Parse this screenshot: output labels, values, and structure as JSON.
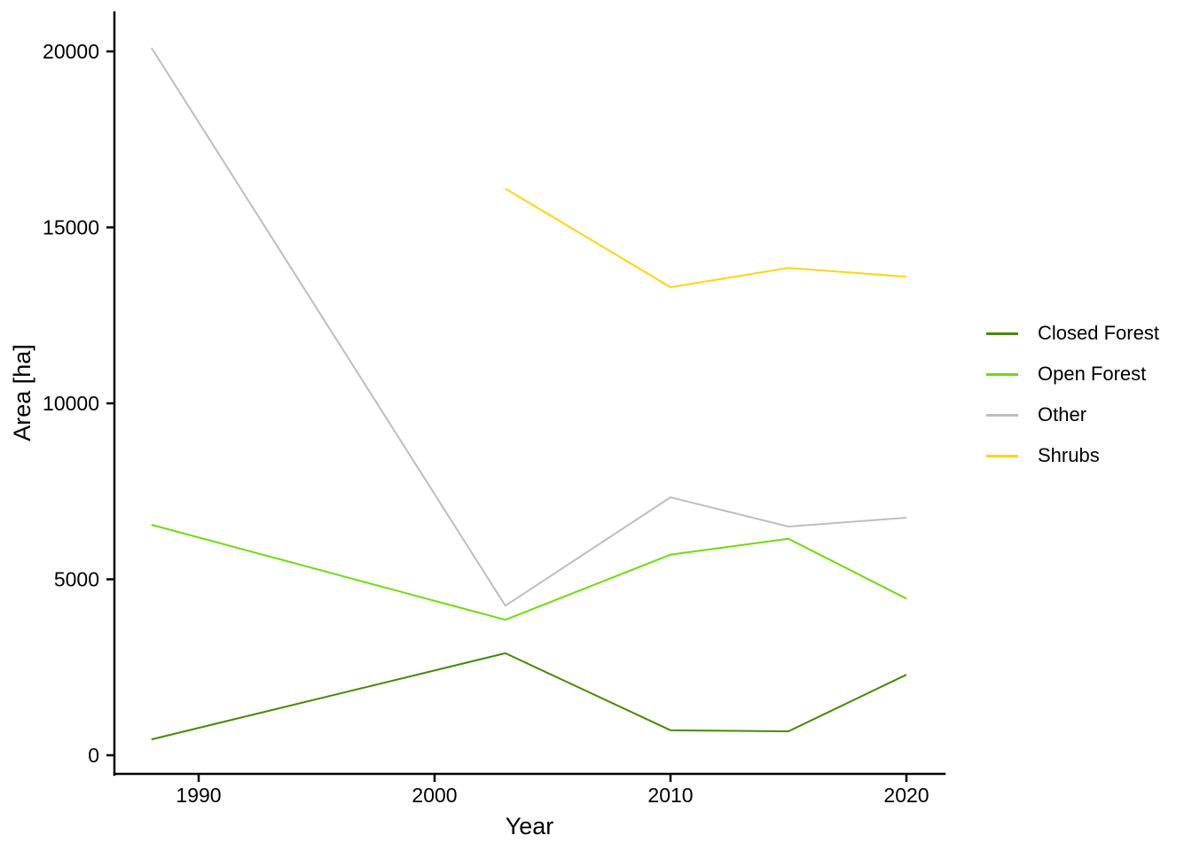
{
  "figure": {
    "background_color": "#FFFFFF",
    "text_color": "#000000"
  },
  "chart_data": {
    "type": "line",
    "title": "",
    "xlabel": "Year",
    "ylabel": "Area [ha]",
    "xticks": [
      1990,
      2000,
      2010,
      2020
    ],
    "xtick_labels": [
      "1990",
      "2000",
      "2010",
      "2020"
    ],
    "yticks": [
      0,
      5000,
      10000,
      15000,
      20000
    ],
    "ytick_labels": [
      "0",
      "5000",
      "10000",
      "15000",
      "20000"
    ],
    "xlim": [
      1986.4,
      2021.6
    ],
    "ylim": [
      -530,
      21110
    ],
    "grid": false,
    "legend_position": "right",
    "x_years": [
      1988,
      2003,
      2010,
      2015,
      2020
    ],
    "series": [
      {
        "name": "Closed Forest",
        "color": "#458B00",
        "points": [
          [
            1988,
            450
          ],
          [
            2003,
            2900
          ],
          [
            2010,
            710
          ],
          [
            2015,
            680
          ],
          [
            2020,
            2290
          ]
        ]
      },
      {
        "name": "Open Forest",
        "color": "#6EDD00",
        "points": [
          [
            1988,
            6550
          ],
          [
            2003,
            3850
          ],
          [
            2010,
            5700
          ],
          [
            2015,
            6150
          ],
          [
            2020,
            4450
          ]
        ]
      },
      {
        "name": "Other",
        "color": "#BEBEBE",
        "points": [
          [
            1988,
            20100
          ],
          [
            2003,
            4250
          ],
          [
            2010,
            7330
          ],
          [
            2015,
            6500
          ],
          [
            2020,
            6750
          ]
        ]
      },
      {
        "name": "Shrubs",
        "color": "#FFD700",
        "points": [
          [
            2003,
            16100
          ],
          [
            2010,
            13300
          ],
          [
            2015,
            13850
          ],
          [
            2020,
            13600
          ]
        ]
      }
    ]
  }
}
